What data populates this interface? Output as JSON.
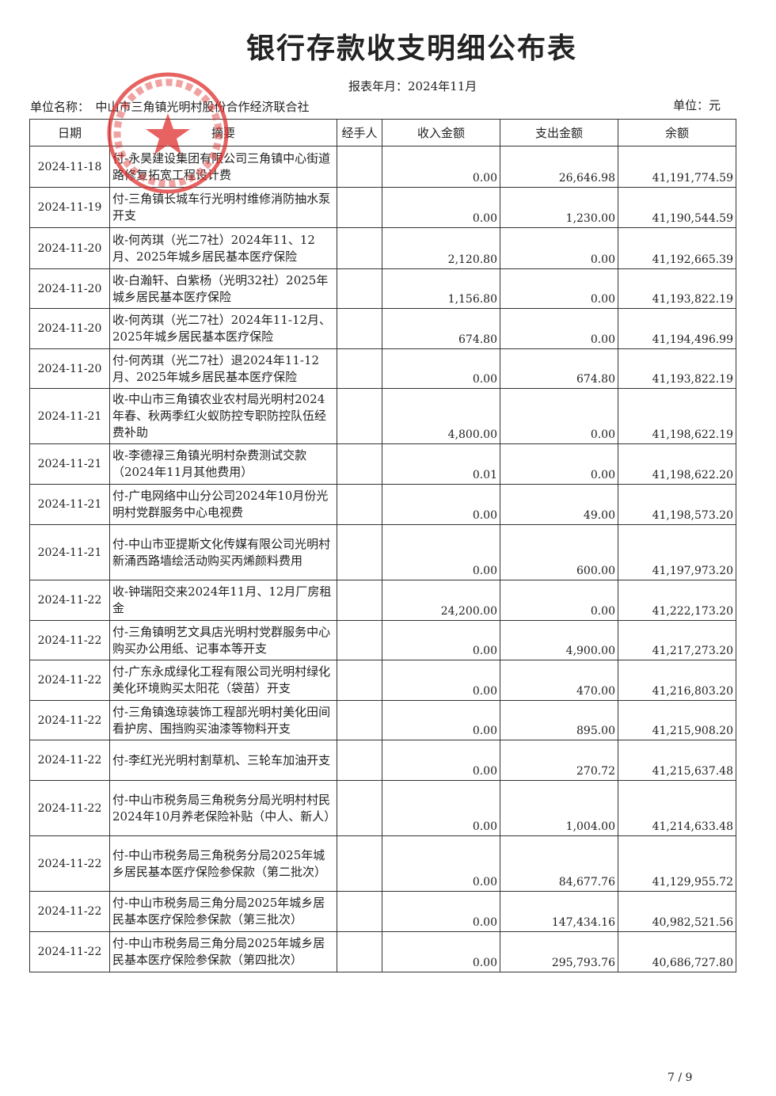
{
  "title": "银行存款收支明细公布表",
  "period": "报表年月：2024年11月",
  "unit_name": "单位名称：　中山市三角镇光明村股份合作经济联合社",
  "unit": "单位：元",
  "seal": {
    "text": "中山市三角镇光明村股份合作经济联合社",
    "color": "#e0302e"
  },
  "columns": [
    "日期",
    "摘要",
    "经手人",
    "收入金额",
    "支出金额",
    "余额"
  ],
  "rows": [
    {
      "date": "2024-11-18",
      "desc": "付-永昊建设集团有限公司三角镇中心街道路修复拓宽工程设计费",
      "handler": "",
      "income": "0.00",
      "expense": "26,646.98",
      "balance": "41,191,774.59"
    },
    {
      "date": "2024-11-19",
      "desc": "付-三角镇长城车行光明村维修消防抽水泵开支",
      "handler": "",
      "income": "0.00",
      "expense": "1,230.00",
      "balance": "41,190,544.59"
    },
    {
      "date": "2024-11-20",
      "desc": "收-何芮琪（光二7社）2024年11、12月、2025年城乡居民基本医疗保险",
      "handler": "",
      "income": "2,120.80",
      "expense": "0.00",
      "balance": "41,192,665.39"
    },
    {
      "date": "2024-11-20",
      "desc": "收-白瀚轩、白紫杨（光明32社）2025年城乡居民基本医疗保险",
      "handler": "",
      "income": "1,156.80",
      "expense": "0.00",
      "balance": "41,193,822.19"
    },
    {
      "date": "2024-11-20",
      "desc": "收-何芮琪（光二7社）2024年11-12月、2025年城乡居民基本医疗保险",
      "handler": "",
      "income": "674.80",
      "expense": "0.00",
      "balance": "41,194,496.99"
    },
    {
      "date": "2024-11-20",
      "desc": "付-何芮琪（光二7社）退2024年11-12月、2025年城乡居民基本医疗保险",
      "handler": "",
      "income": "0.00",
      "expense": "674.80",
      "balance": "41,193,822.19"
    },
    {
      "date": "2024-11-21",
      "desc": "收-中山市三角镇农业农村局光明村2024年春、秋两季红火蚁防控专职防控队伍经费补助",
      "handler": "",
      "income": "4,800.00",
      "expense": "0.00",
      "balance": "41,198,622.19"
    },
    {
      "date": "2024-11-21",
      "desc": "收-李德禄三角镇光明村杂费测试交款（2024年11月其他费用）",
      "handler": "",
      "income": "0.01",
      "expense": "0.00",
      "balance": "41,198,622.20"
    },
    {
      "date": "2024-11-21",
      "desc": "付-广电网络中山分公司2024年10月份光明村党群服务中心电视费",
      "handler": "",
      "income": "0.00",
      "expense": "49.00",
      "balance": "41,198,573.20"
    },
    {
      "date": "2024-11-21",
      "desc": "付-中山市亚提斯文化传媒有限公司光明村新涌西路墙绘活动购买丙烯颜料费用",
      "handler": "",
      "income": "0.00",
      "expense": "600.00",
      "balance": "41,197,973.20"
    },
    {
      "date": "2024-11-22",
      "desc": "收-钟瑞阳交来2024年11月、12月厂房租金",
      "handler": "",
      "income": "24,200.00",
      "expense": "0.00",
      "balance": "41,222,173.20"
    },
    {
      "date": "2024-11-22",
      "desc": "付-三角镇明艺文具店光明村党群服务中心购买办公用纸、记事本等开支",
      "handler": "",
      "income": "0.00",
      "expense": "4,900.00",
      "balance": "41,217,273.20"
    },
    {
      "date": "2024-11-22",
      "desc": "付-广东永成绿化工程有限公司光明村绿化美化环境购买太阳花（袋苗）开支",
      "handler": "",
      "income": "0.00",
      "expense": "470.00",
      "balance": "41,216,803.20"
    },
    {
      "date": "2024-11-22",
      "desc": "付-三角镇逸琼装饰工程部光明村美化田间看护房、围挡购买油漆等物料开支",
      "handler": "",
      "income": "0.00",
      "expense": "895.00",
      "balance": "41,215,908.20"
    },
    {
      "date": "2024-11-22",
      "desc": "付-李红光光明村割草机、三轮车加油开支",
      "handler": "",
      "income": "0.00",
      "expense": "270.72",
      "balance": "41,215,637.48"
    },
    {
      "date": "2024-11-22",
      "desc": "付-中山市税务局三角税务分局光明村村民2024年10月养老保险补贴（中人、新人）",
      "handler": "",
      "income": "0.00",
      "expense": "1,004.00",
      "balance": "41,214,633.48"
    },
    {
      "date": "2024-11-22",
      "desc": "付-中山市税务局三角税务分局2025年城乡居民基本医疗保险参保款（第二批次）",
      "handler": "",
      "income": "0.00",
      "expense": "84,677.76",
      "balance": "41,129,955.72"
    },
    {
      "date": "2024-11-22",
      "desc": "付-中山市税务局三角分局2025年城乡居民基本医疗保险参保款（第三批次）",
      "handler": "",
      "income": "0.00",
      "expense": "147,434.16",
      "balance": "40,982,521.56"
    },
    {
      "date": "2024-11-22",
      "desc": "付-中山市税务局三角分局2025年城乡居民基本医疗保险参保款（第四批次）",
      "handler": "",
      "income": "0.00",
      "expense": "295,793.76",
      "balance": "40,686,727.80"
    }
  ],
  "page_number": "7 / 9"
}
